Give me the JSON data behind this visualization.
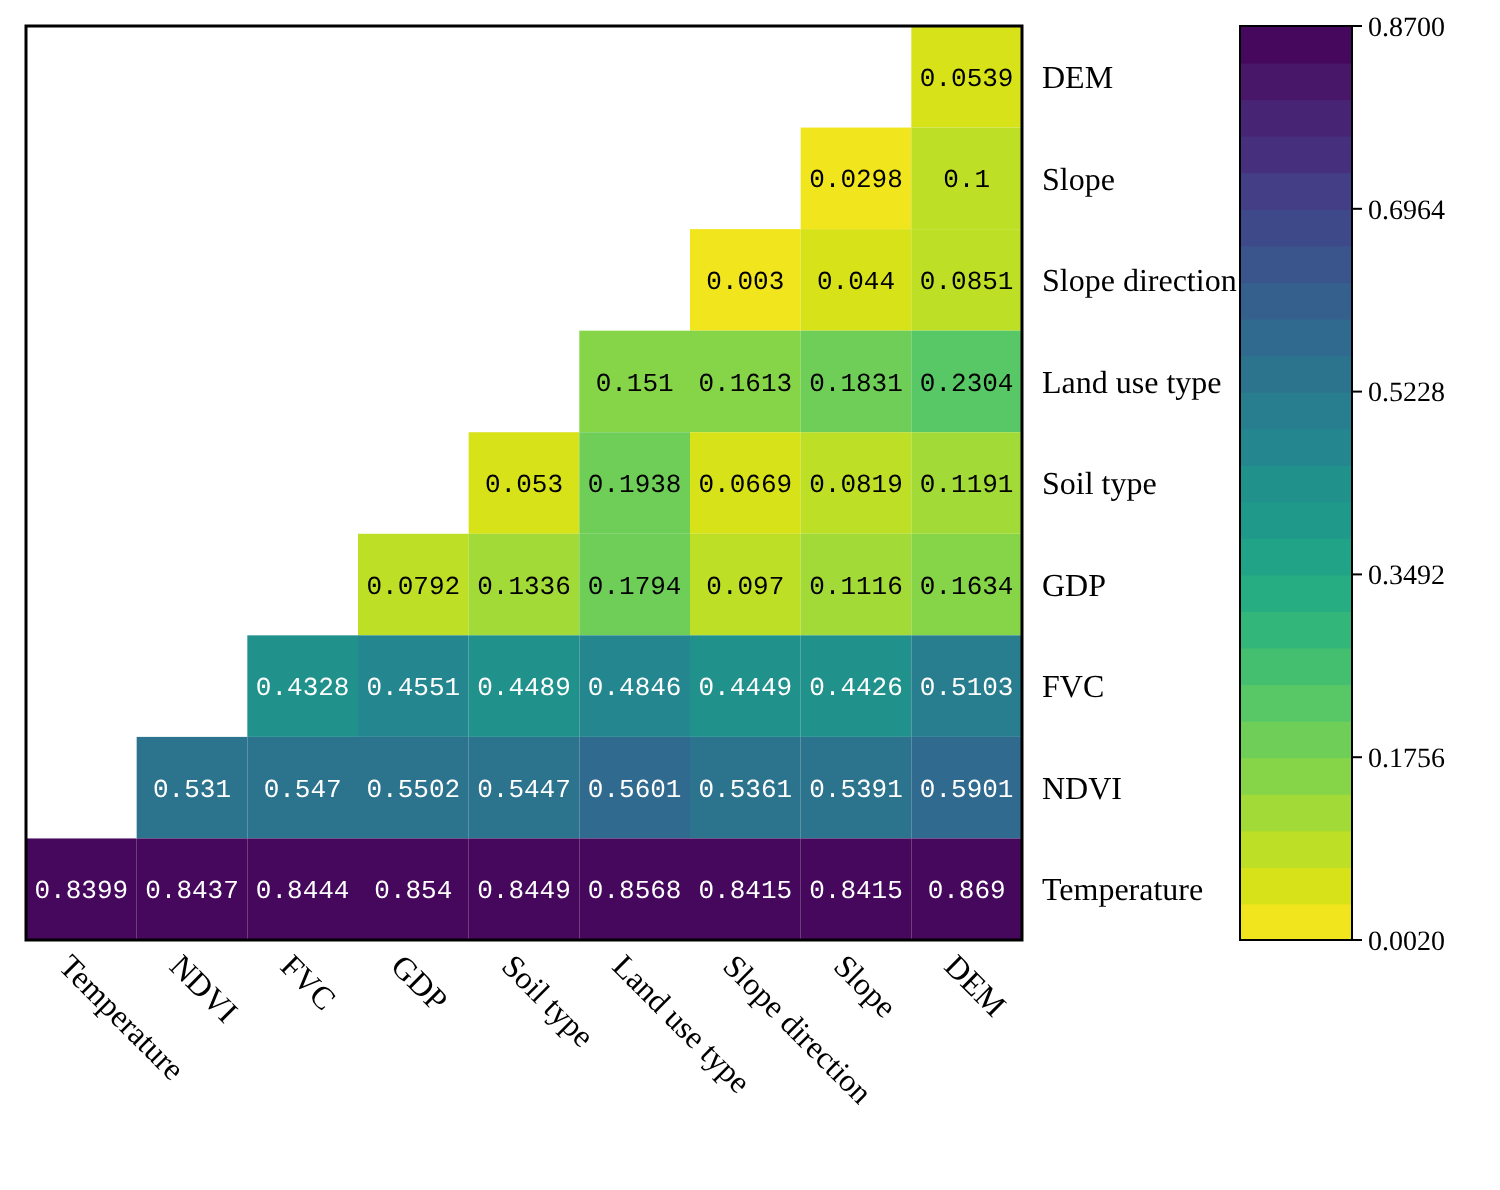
{
  "chart_data": {
    "type": "heatmap",
    "categories": [
      "Temperature",
      "NDVI",
      "FVC",
      "GDP",
      "Soil type",
      "Land use type",
      "Slope direction",
      "Slope",
      "DEM"
    ],
    "y_categories": [
      "DEM",
      "Slope",
      "Slope direction",
      "Land use type",
      "Soil type",
      "GDP",
      "FVC",
      "NDVI",
      "Temperature"
    ],
    "cells": [
      [
        null,
        null,
        null,
        null,
        null,
        null,
        null,
        null,
        0.0539
      ],
      [
        null,
        null,
        null,
        null,
        null,
        null,
        null,
        0.0298,
        0.1
      ],
      [
        null,
        null,
        null,
        null,
        null,
        null,
        0.003,
        0.044,
        0.0851
      ],
      [
        null,
        null,
        null,
        null,
        null,
        0.151,
        0.1613,
        0.1831,
        0.2304
      ],
      [
        null,
        null,
        null,
        null,
        0.053,
        0.1938,
        0.0669,
        0.0819,
        0.1191
      ],
      [
        null,
        null,
        null,
        0.0792,
        0.1336,
        0.1794,
        0.097,
        0.1116,
        0.1634
      ],
      [
        null,
        null,
        0.4328,
        0.4551,
        0.4489,
        0.4846,
        0.4449,
        0.4426,
        0.5103
      ],
      [
        null,
        0.531,
        0.547,
        0.5502,
        0.5447,
        0.5601,
        0.5361,
        0.5391,
        0.5901
      ],
      [
        0.8399,
        0.8437,
        0.8444,
        0.854,
        0.8449,
        0.8568,
        0.8415,
        0.8415,
        0.869
      ]
    ],
    "clim": [
      0.002,
      0.87
    ],
    "cticks": [
      {
        "value": 0.002,
        "label": "0.0020"
      },
      {
        "value": 0.1756,
        "label": "0.1756"
      },
      {
        "value": 0.3492,
        "label": "0.3492"
      },
      {
        "value": 0.5228,
        "label": "0.5228"
      },
      {
        "value": 0.6964,
        "label": "0.6964"
      },
      {
        "value": 0.87,
        "label": "0.8700"
      }
    ],
    "data_labels": true
  }
}
